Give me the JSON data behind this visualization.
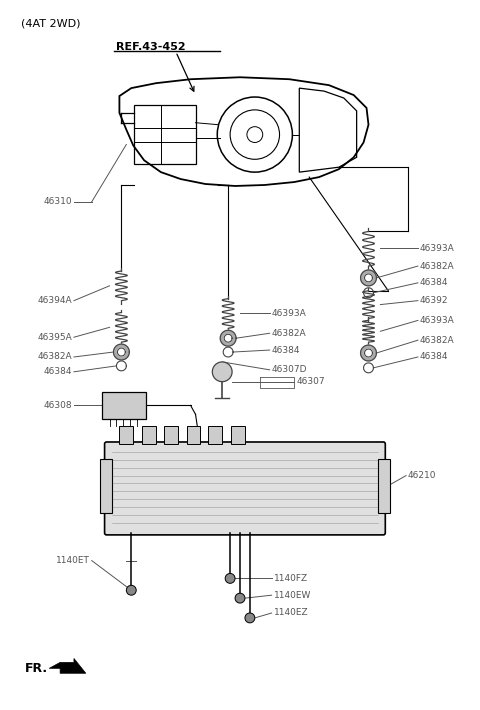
{
  "title": "(4AT 2WD)",
  "bg_color": "#ffffff",
  "line_color": "#000000",
  "label_color": "#555555",
  "ref_label": "REF.43-452",
  "fr_label": "FR."
}
